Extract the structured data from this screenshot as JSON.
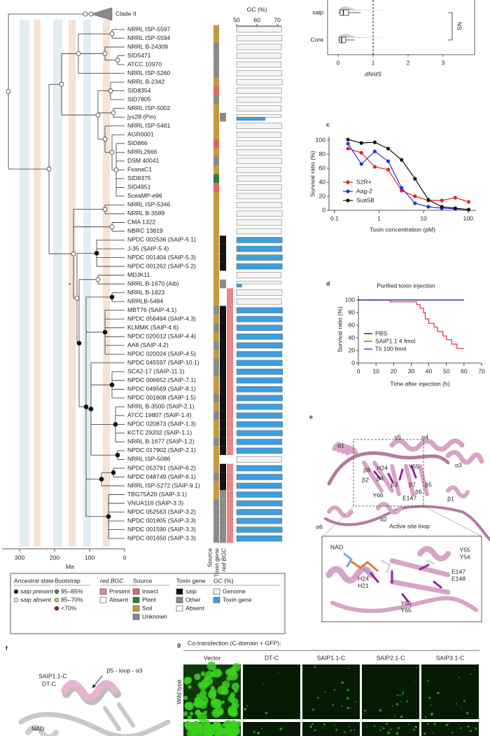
{
  "panel_labels": [
    "c",
    "d",
    "e",
    "f",
    "g"
  ],
  "tree": {
    "clade_label": "Clade II",
    "asterisk": "*",
    "axis_label": "Ma",
    "xlim": [
      350,
      0
    ],
    "xticks": [
      300,
      200,
      100,
      0
    ]
  },
  "columns": {
    "source": "Source",
    "toxin_gene": "Toxin gene",
    "red_bgc": "red BGC"
  },
  "legend": [
    {
      "title": "Ancestral state",
      "marker": "circle",
      "items": [
        "saip present",
        "saip absent"
      ],
      "colors": [
        "#111111",
        "#ffffff"
      ]
    },
    {
      "title": "Bootstrap",
      "marker": "circle",
      "items": [
        "95–85%",
        "85–70%",
        "<70%"
      ],
      "colors": [
        "#3d8f5a",
        "#e8d23a",
        "#8e1f3c"
      ]
    },
    {
      "title": "red BGC",
      "marker": "square",
      "items": [
        "Present",
        "Absent"
      ],
      "colors": [
        "#e88585",
        "#ffffff"
      ]
    },
    {
      "title": "Source",
      "marker": "square",
      "items": [
        "Insect",
        "Plant",
        "Soil",
        "Unknown"
      ],
      "colors": [
        "#e06464",
        "#2e7d32",
        "#c49a3c",
        "#8a8a8a"
      ]
    },
    {
      "title": "Toxin gene",
      "marker": "square",
      "items": [
        "saip",
        "Other",
        "Absent"
      ],
      "colors": [
        "#111111",
        "#8a8a8a",
        "#ffffff"
      ]
    },
    {
      "title": "GC (%)",
      "marker": "square"
    }
  ],
  "chart_data": [
    {
      "type": "box",
      "categories": [
        "saip",
        "Core"
      ],
      "xlabel": "dN/dS",
      "xlim": [
        -0.3,
        3.9
      ],
      "xticks": [
        0,
        1,
        2,
        3
      ],
      "q1": [
        0.06,
        0.04
      ],
      "median": [
        0.15,
        0.1
      ],
      "q3": [
        0.3,
        0.22
      ],
      "whisker_low": [
        0,
        0
      ],
      "whisker_high": [
        0.65,
        0.48
      ],
      "reference_line": 1,
      "annotation": "NS"
    },
    {
      "type": "scatter-line",
      "xlabel": "Toxin concentration (pM)",
      "ylabel": "Survival ratio (%)",
      "xscale": "log",
      "xlim": [
        0.075,
        150
      ],
      "xticks": [
        0.1,
        1,
        10,
        100
      ],
      "ylim": [
        0,
        105
      ],
      "yticks": [
        0,
        20,
        40,
        60,
        80,
        100
      ],
      "x": [
        0.2,
        0.4,
        0.8,
        1.6,
        3.2,
        6.4,
        12.8,
        25.6,
        51.2,
        102.4
      ],
      "series": [
        {
          "name": "S2R+",
          "color": "#e02424",
          "values": [
            88,
            82,
            62,
            58,
            28,
            20,
            14,
            14,
            18,
            12
          ]
        },
        {
          "name": "Aag-2",
          "color": "#2233dd",
          "values": [
            95,
            66,
            84,
            70,
            32,
            10,
            5,
            3,
            2,
            1
          ]
        },
        {
          "name": "Sua5B",
          "color": "#111111",
          "values": [
            101,
            96,
            97,
            88,
            72,
            45,
            15,
            5,
            3,
            1
          ]
        }
      ]
    },
    {
      "type": "step",
      "title": "Purified toxin injection",
      "xlabel": "Time after injection (h)",
      "ylabel": "Survival ratio (%)",
      "xlim": [
        0,
        70
      ],
      "xticks": [
        0,
        10,
        20,
        30,
        40,
        50,
        60,
        70
      ],
      "ylim": [
        0,
        100
      ],
      "yticks": [
        0,
        20,
        40,
        60,
        80,
        100
      ],
      "series": [
        {
          "name": "PBS",
          "color": "#111111",
          "x": [
            0,
            60
          ],
          "values": [
            100,
            100
          ]
        },
        {
          "name": "SAIP1.1 4 fmol",
          "color": "#e03030",
          "x": [
            0,
            18,
            18,
            33,
            33,
            35,
            35,
            37,
            37,
            38,
            38,
            40,
            40,
            43,
            43,
            45,
            45,
            48,
            48,
            50,
            50,
            53,
            53,
            56,
            56,
            60
          ],
          "values": [
            100,
            100,
            97,
            97,
            93,
            93,
            87,
            87,
            80,
            80,
            70,
            70,
            63,
            63,
            57,
            57,
            50,
            50,
            43,
            43,
            37,
            37,
            30,
            30,
            23,
            23
          ]
        },
        {
          "name": "Tli 100 fmol",
          "color": "#2233cc",
          "x": [
            0,
            60
          ],
          "values": [
            100,
            100
          ]
        }
      ]
    },
    {
      "type": "hbar",
      "title": "GC (%)",
      "xlim": [
        50,
        72
      ],
      "xticks": [
        50,
        60,
        70
      ],
      "categories": [
        "NRRL ISP-5597",
        "NRRL ISP-5594",
        "NRRL B-24309",
        "SID5471",
        "ATCC 10970",
        "NRRL ISP-5260",
        "NRRL B-2342",
        "SID8354",
        "SID7805",
        "NRRL ISP-5002",
        "jys28 (Pin)",
        "NRRL ISP-5461",
        "AGR0001",
        "SID866",
        "NRRL2666",
        "DSM 40041",
        "FxanaC1",
        "SID8375",
        "SID4951",
        "SceaMP-e96",
        "NRRL ISP-5346",
        "NRRL B-3589",
        "CMA 1322",
        "NBRC 13819",
        "NPDC 002536 (SAIP-5.1)",
        "J-35 (SAIP-5.4)",
        "NPDC 001404 (SAIP-5.3)",
        "NPDC 001262 (SAIP-5.2)",
        "MDJK11",
        "NRRL B-1670 (Alb)",
        "NRRL B-1823",
        "NRRLB-5484",
        "MBT76 (SAIP-4.1)",
        "NPDC 056494 (SAIP-4.3)",
        "KLMMK (SAIP-4.6)",
        "NPDC 020012 (SAIP-4.4)",
        "AA8 (SAIP-4.2)",
        "NPDC 020024 (SAIP-4.5)",
        "NPDC 045597 (SAIP-10.1)",
        "SCA2-17 (SAIP-11.1)",
        "NPDC 006652 (SAIP-7.1)",
        "NPDC 049569 (SAIP-8.1)",
        "NPDC 001608 (SAIP-1.5)",
        "NRRL B-3500 (SAIP-2.1)",
        "ATCC 19807 (SAIP-1.4)",
        "NPDC 020873 (SAIP-1.3)",
        "KCTC 29202 (SAIP-1.1)",
        "NRRL B-1677 (SAIP-1.2)",
        "NPDC 017902 (SAIP-2.1)",
        "NRRL ISP-5086",
        "NPDC 053791 (SAIP-6.2)",
        "NPDC 048749 (SAIP-6.1)",
        "NRRL ISP-5272 (SAIP-9.1)",
        "TBG75A20 (SAIP-3.1)",
        "VNUA116 (SAIP-3.3)",
        "NPDC 052563 (SAIP-3.2)",
        "NPDC 001805 (SAIP-3.3)",
        "NPDC 001590 (SAIP-3.3)",
        "NPDC 001650 (SAIP-3.3)"
      ],
      "series": [
        {
          "name": "Genome",
          "color": "#f4f4f4",
          "values": [
            72.1,
            72.3,
            72.0,
            71.8,
            71.9,
            72.2,
            72.4,
            72.1,
            72.0,
            71.9,
            72.0,
            72.1,
            71.8,
            71.9,
            72.0,
            72.2,
            71.7,
            71.9,
            72.1,
            72.0,
            72.3,
            72.4,
            72.2,
            72.0,
            null,
            null,
            null,
            null,
            71.9,
            72.0,
            72.3,
            72.1,
            null,
            null,
            null,
            null,
            null,
            null,
            null,
            null,
            null,
            null,
            null,
            null,
            null,
            null,
            null,
            null,
            null,
            72.2,
            null,
            null,
            null,
            null,
            null,
            null,
            null,
            null,
            null
          ]
        },
        {
          "name": "Toxin gene",
          "color": "#3d9ee0",
          "values": [
            null,
            null,
            null,
            null,
            null,
            null,
            null,
            null,
            null,
            null,
            64.0,
            null,
            null,
            null,
            null,
            null,
            null,
            null,
            null,
            null,
            null,
            null,
            null,
            null,
            72.4,
            72.3,
            72.5,
            72.4,
            null,
            52.5,
            null,
            null,
            72.6,
            72.5,
            72.4,
            72.6,
            72.5,
            72.3,
            72.4,
            72.6,
            72.5,
            72.4,
            72.6,
            72.5,
            72.4,
            72.6,
            72.5,
            72.3,
            72.4,
            null,
            72.3,
            72.4,
            72.2,
            72.3,
            72.4,
            72.3,
            72.2,
            72.4,
            72.3
          ]
        }
      ],
      "source": [
        "Soil",
        "Soil",
        "Unknown",
        "Unknown",
        "Unknown",
        "Unknown",
        "Soil",
        "Insect",
        "Unknown",
        "Soil",
        "Soil",
        "Soil",
        "Soil",
        "Insect",
        "Soil",
        "Unknown",
        "Soil",
        "Plant",
        "Insect",
        "Soil",
        "Soil",
        "Soil",
        "Soil",
        "Soil",
        "Soil",
        "Soil",
        "Soil",
        "Soil",
        "Soil",
        "Soil",
        "Soil",
        "Soil",
        "Unknown",
        "Soil",
        "Unknown",
        "Soil",
        "Unknown",
        "Soil",
        "Unknown",
        "Unknown",
        "Soil",
        "Soil",
        "Unknown",
        "Soil",
        "Unknown",
        "Soil",
        "Soil",
        "Unknown",
        "Soil",
        "Soil",
        "Soil",
        "Unknown",
        "Soil",
        "Soil",
        "Unknown",
        "Unknown",
        "Unknown",
        "Unknown",
        "Unknown"
      ],
      "toxin_gene": [
        "Absent",
        "Absent",
        "Absent",
        "Absent",
        "Absent",
        "Absent",
        "Absent",
        "Absent",
        "Absent",
        "Absent",
        "Other",
        "Absent",
        "Absent",
        "Absent",
        "Absent",
        "Absent",
        "Absent",
        "Absent",
        "Absent",
        "Absent",
        "Absent",
        "Absent",
        "Absent",
        "Absent",
        "saip",
        "saip",
        "saip",
        "saip",
        "Absent",
        "Other",
        "Absent",
        "Absent",
        "saip",
        "saip",
        "saip",
        "saip",
        "saip",
        "saip",
        "saip",
        "saip",
        "saip",
        "saip",
        "saip",
        "saip",
        "saip",
        "saip",
        "saip",
        "saip",
        "saip",
        "Absent",
        "saip",
        "saip",
        "saip",
        "Other",
        "Other",
        "Other",
        "Other",
        "Other",
        "Other"
      ],
      "red_bgc": [
        "Absent",
        "Absent",
        "Absent",
        "Absent",
        "Absent",
        "Absent",
        "Absent",
        "Absent",
        "Absent",
        "Absent",
        "Absent",
        "Absent",
        "Absent",
        "Absent",
        "Absent",
        "Absent",
        "Absent",
        "Absent",
        "Absent",
        "Absent",
        "Absent",
        "Absent",
        "Absent",
        "Absent",
        "Absent",
        "Absent",
        "Absent",
        "Absent",
        "Absent",
        "Absent",
        "Present",
        "Present",
        "Present",
        "Present",
        "Present",
        "Present",
        "Present",
        "Present",
        "Present",
        "Present",
        "Present",
        "Present",
        "Present",
        "Present",
        "Present",
        "Present",
        "Present",
        "Present",
        "Present",
        "Absent",
        "Present",
        "Present",
        "Present",
        "Present",
        "Present",
        "Present",
        "Present",
        "Present",
        "Present"
      ]
    }
  ],
  "panel_e": {
    "labels": [
      {
        "text": "α1"
      },
      {
        "text": "α5"
      },
      {
        "text": "α4"
      },
      {
        "text": "β8"
      },
      {
        "text": "H24",
        "color": "#2f4fb5"
      },
      {
        "text": "Y55",
        "color": "#2f4fb5"
      },
      {
        "text": "β2"
      },
      {
        "text": "β4"
      },
      {
        "text": "β3"
      },
      {
        "text": "β7"
      },
      {
        "text": "β5"
      },
      {
        "text": "α3"
      },
      {
        "text": "Y66",
        "color": "#2f4fb5"
      },
      {
        "text": "E147",
        "color": "#2f4fb5"
      },
      {
        "text": "β6"
      },
      {
        "text": "β1"
      },
      {
        "text": "α2"
      },
      {
        "text": "α6"
      },
      {
        "text": "Active site loop"
      },
      {
        "text": "NAD",
        "color": "#8cc8c0"
      },
      {
        "text": "Y55"
      },
      {
        "text": "Y54"
      },
      {
        "text": "H24"
      },
      {
        "text": "H21"
      },
      {
        "text": "E147"
      },
      {
        "text": "E148"
      },
      {
        "text": "Y66"
      },
      {
        "text": "Y65"
      }
    ]
  },
  "panel_f": {
    "labels": [
      {
        "text": "SAIP1.1-C",
        "color": "#e59cc4"
      },
      {
        "text": "DT-C",
        "color": "#8a8a8a"
      },
      {
        "text": "β5 - loop - α3"
      },
      {
        "text": "NAD",
        "color": "#9cc8d8"
      }
    ]
  },
  "panel_g": {
    "title": "Co-transfection (C-domain + GFP):",
    "columns": [
      "Vector",
      "DT-C",
      "SAIP1.1-C",
      "SAIP2.1-C",
      "SAIP3.1-C"
    ],
    "rows": [
      "Wild type"
    ]
  }
}
